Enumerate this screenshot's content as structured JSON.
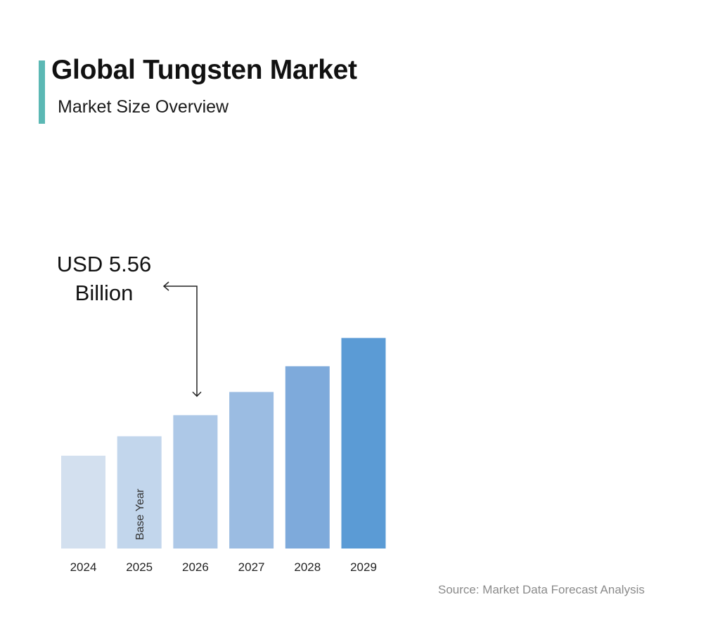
{
  "header": {
    "title": "Global Tungsten Market",
    "subtitle": "Market Size Overview"
  },
  "colors": {
    "accent_bar": "#5bb8b4",
    "bars": [
      "#d3e0ef",
      "#c2d6ec",
      "#adc8e7",
      "#9bbce2",
      "#7eaadb",
      "#5b9bd5"
    ]
  },
  "chart_data": {
    "type": "bar",
    "categories": [
      "2024",
      "2025",
      "2026",
      "2027",
      "2028",
      "2029"
    ],
    "values": [
      4.6,
      5.06,
      5.56,
      6.11,
      6.72,
      7.39
    ],
    "base_year_category": "2025",
    "base_year_label": "Base Year",
    "annotation": {
      "text_line1": "USD 5.56",
      "text_line2": "Billion",
      "target_category": "2026"
    },
    "title": "",
    "xlabel": "",
    "ylabel": "",
    "grid": false,
    "legend": "none"
  },
  "source": "Source: Market Data Forecast Analysis"
}
